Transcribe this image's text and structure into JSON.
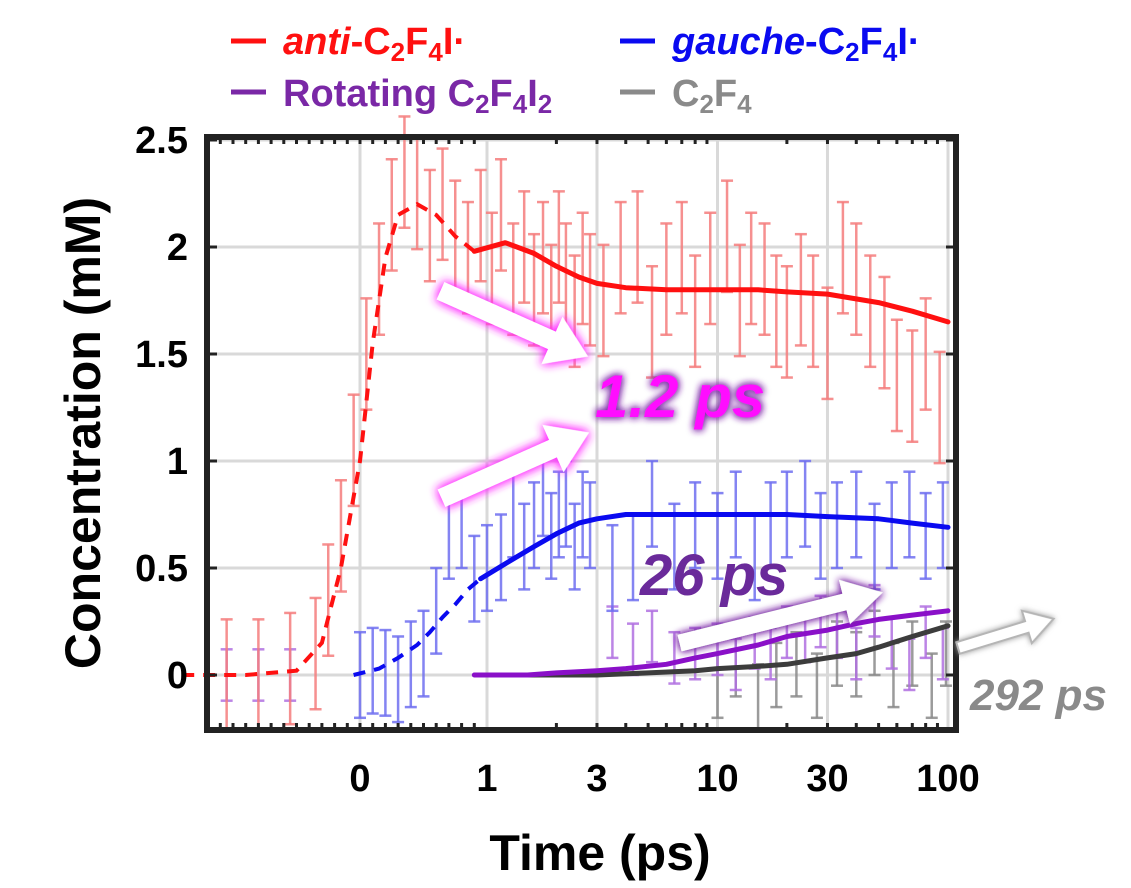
{
  "chart_data": {
    "type": "line",
    "title": "",
    "xlabel": "Time (ps)",
    "ylabel": "Concentration (mM)",
    "x_scale": "piecewise: linear from -1 to 1 ps, logarithmic from 1 to 100 ps",
    "xlim": [
      -1.5,
      100
    ],
    "ylim": [
      -0.25,
      2.5
    ],
    "x_ticks": [
      0,
      1,
      3,
      10,
      30,
      100
    ],
    "x_tick_labels": [
      "0",
      "1",
      "3",
      "10",
      "30",
      "100"
    ],
    "y_ticks": [
      0,
      0.5,
      1,
      1.5,
      2,
      2.5
    ],
    "y_tick_labels": [
      "0",
      "0.5",
      "1",
      "1.5",
      "2",
      "2.5"
    ],
    "grid": true,
    "legend_placement": "top, outside the plot, two columns",
    "legend": [
      {
        "prefix": "anti",
        "formula": [
          "-C",
          "2",
          "F",
          "4",
          "I·"
        ],
        "italic_prefix": true,
        "color": "#ff1010"
      },
      {
        "prefix": "gauche",
        "formula": [
          "-C",
          "2",
          "F",
          "4",
          "I·"
        ],
        "italic_prefix": true,
        "color": "#0a0af0"
      },
      {
        "prefix": "",
        "formula": [
          "Rotating C",
          "2",
          "F",
          "4",
          "I",
          "2"
        ],
        "italic_prefix": false,
        "color": "#7a28a6"
      },
      {
        "prefix": "",
        "formula": [
          "C",
          "2",
          "F",
          "4"
        ],
        "italic_prefix": false,
        "color": "#8a8a8a"
      }
    ],
    "series": [
      {
        "name": "anti-C2F4I·",
        "color": "#ff1010",
        "errorbar_color": "#f47c7c",
        "dashed_x": [
          -1.4,
          -0.9,
          -0.5,
          -0.3,
          -0.15,
          0,
          0.1,
          0.2,
          0.3,
          0.45,
          0.6,
          0.75,
          0.9
        ],
        "dashed_y": [
          0,
          0,
          0.02,
          0.15,
          0.5,
          1.0,
          1.55,
          1.95,
          2.15,
          2.2,
          2.15,
          2.05,
          1.98
        ],
        "fit_x": [
          0.9,
          1.2,
          1.6,
          2,
          2.5,
          3,
          4,
          6,
          10,
          15,
          20,
          30,
          50,
          70,
          100
        ],
        "fit_y": [
          1.98,
          2.02,
          1.97,
          1.91,
          1.86,
          1.83,
          1.81,
          1.8,
          1.8,
          1.8,
          1.79,
          1.78,
          1.74,
          1.7,
          1.65
        ],
        "data_x": [
          -1.3,
          -1.05,
          -0.8,
          -0.55,
          -0.35,
          -0.25,
          -0.15,
          -0.05,
          0.05,
          0.15,
          0.25,
          0.35,
          0.45,
          0.55,
          0.65,
          0.75,
          0.85,
          0.95,
          1.05,
          1.15,
          1.3,
          1.45,
          1.6,
          1.75,
          1.9,
          2.05,
          2.2,
          2.4,
          2.6,
          2.8,
          3.2,
          3.8,
          4.5,
          5.2,
          6,
          7,
          8,
          9.3,
          11,
          12.5,
          14,
          16,
          18,
          20,
          23,
          26,
          30,
          35,
          40,
          46,
          53,
          60,
          70,
          80,
          92
        ],
        "data_y": [
          0.0,
          0.0,
          0.0,
          0.03,
          0.1,
          0.35,
          0.65,
          1.05,
          1.5,
          1.85,
          2.15,
          2.35,
          2.25,
          2.1,
          2.2,
          2.05,
          1.95,
          2.1,
          1.9,
          2.15,
          1.85,
          2.0,
          1.8,
          1.95,
          1.75,
          2.0,
          1.85,
          1.7,
          1.9,
          1.8,
          1.75,
          1.95,
          2.0,
          1.65,
          1.85,
          1.95,
          1.7,
          1.9,
          2.05,
          1.75,
          1.9,
          1.85,
          1.7,
          1.65,
          1.8,
          1.7,
          1.55,
          1.95,
          1.85,
          1.7,
          1.6,
          1.4,
          1.35,
          1.5,
          1.25
        ],
        "err": 0.26
      },
      {
        "name": "gauche-C2F4I·",
        "color": "#0a0af0",
        "errorbar_color": "#6e6ef0",
        "dashed_x": [
          -0.05,
          0.15,
          0.3,
          0.45,
          0.55,
          0.65,
          0.75,
          0.85,
          0.95
        ],
        "dashed_y": [
          0,
          0.03,
          0.08,
          0.14,
          0.2,
          0.27,
          0.33,
          0.4,
          0.45
        ],
        "fit_x": [
          0.95,
          1.2,
          1.6,
          2,
          2.5,
          3,
          4,
          6,
          10,
          15,
          20,
          30,
          50,
          70,
          100
        ],
        "fit_y": [
          0.45,
          0.52,
          0.6,
          0.66,
          0.71,
          0.73,
          0.75,
          0.75,
          0.75,
          0.75,
          0.75,
          0.74,
          0.73,
          0.71,
          0.69
        ],
        "data_x": [
          0.0,
          0.1,
          0.2,
          0.3,
          0.4,
          0.5,
          0.6,
          0.7,
          0.8,
          0.9,
          1.0,
          1.15,
          1.3,
          1.45,
          1.6,
          1.75,
          1.9,
          2.05,
          2.2,
          2.4,
          2.6,
          2.8,
          3.5,
          4.3,
          5.2,
          6.5,
          8,
          10,
          12,
          14.5,
          17,
          20,
          24,
          28,
          33,
          40,
          48,
          57,
          68,
          80,
          95
        ],
        "data_y": [
          0.0,
          0.02,
          0.01,
          -0.02,
          0.05,
          0.1,
          0.3,
          0.65,
          0.7,
          0.45,
          0.5,
          0.55,
          0.75,
          0.6,
          0.7,
          0.85,
          0.65,
          0.75,
          0.8,
          0.6,
          0.75,
          0.7,
          0.5,
          0.55,
          0.8,
          0.6,
          0.7,
          0.65,
          0.75,
          0.55,
          0.7,
          0.75,
          0.8,
          0.65,
          0.7,
          0.75,
          0.6,
          0.7,
          0.75,
          0.65,
          0.7
        ],
        "err": 0.2
      },
      {
        "name": "Rotating C2F4I2",
        "color": "#8a10c8",
        "errorbar_color": "#b070e0",
        "fit_x": [
          0.9,
          1.5,
          2,
          3,
          4,
          6,
          8,
          10,
          15,
          20,
          30,
          40,
          50,
          70,
          100
        ],
        "fit_y": [
          0.0,
          0.0,
          0.01,
          0.02,
          0.03,
          0.05,
          0.08,
          0.1,
          0.14,
          0.18,
          0.21,
          0.24,
          0.26,
          0.28,
          0.3
        ],
        "data_x": [
          -1.3,
          -1.05,
          -0.8,
          -0.55,
          3.5,
          4.3,
          5.2,
          6.5,
          8,
          10,
          12,
          14.5,
          17,
          20,
          24,
          28,
          33,
          40,
          48,
          57,
          68,
          80,
          95
        ],
        "data_y": [
          0.0,
          0.0,
          0.0,
          0.0,
          0.2,
          0.12,
          0.18,
          0.08,
          0.1,
          0.12,
          0.05,
          0.15,
          0.1,
          0.2,
          0.18,
          0.25,
          0.2,
          0.1,
          0.3,
          0.15,
          0.05,
          0.2,
          0.1
        ],
        "err": 0.12
      },
      {
        "name": "C2F4",
        "color": "#3c3c3c",
        "errorbar_color": "#8a8a8a",
        "fit_x": [
          1,
          3,
          5,
          8,
          10,
          15,
          20,
          30,
          40,
          50,
          70,
          100
        ],
        "fit_y": [
          0.0,
          0.0,
          0.01,
          0.02,
          0.03,
          0.04,
          0.05,
          0.08,
          0.1,
          0.13,
          0.18,
          0.23
        ],
        "data_x": [
          10,
          12,
          15,
          18,
          22,
          27,
          33,
          40,
          48,
          58,
          70,
          85,
          98
        ],
        "data_y": [
          -0.05,
          0.05,
          -0.1,
          0.0,
          0.05,
          -0.05,
          0.1,
          0.05,
          0.15,
          0.0,
          0.1,
          -0.05,
          0.1
        ],
        "err": 0.15
      }
    ],
    "annotations": [
      {
        "text": "1.2 ps",
        "color": "#ff10ff"
      },
      {
        "text": "26 ps",
        "color": "#6a2a9a"
      },
      {
        "text": "292 ps",
        "color": "#8a8a8a"
      }
    ]
  }
}
